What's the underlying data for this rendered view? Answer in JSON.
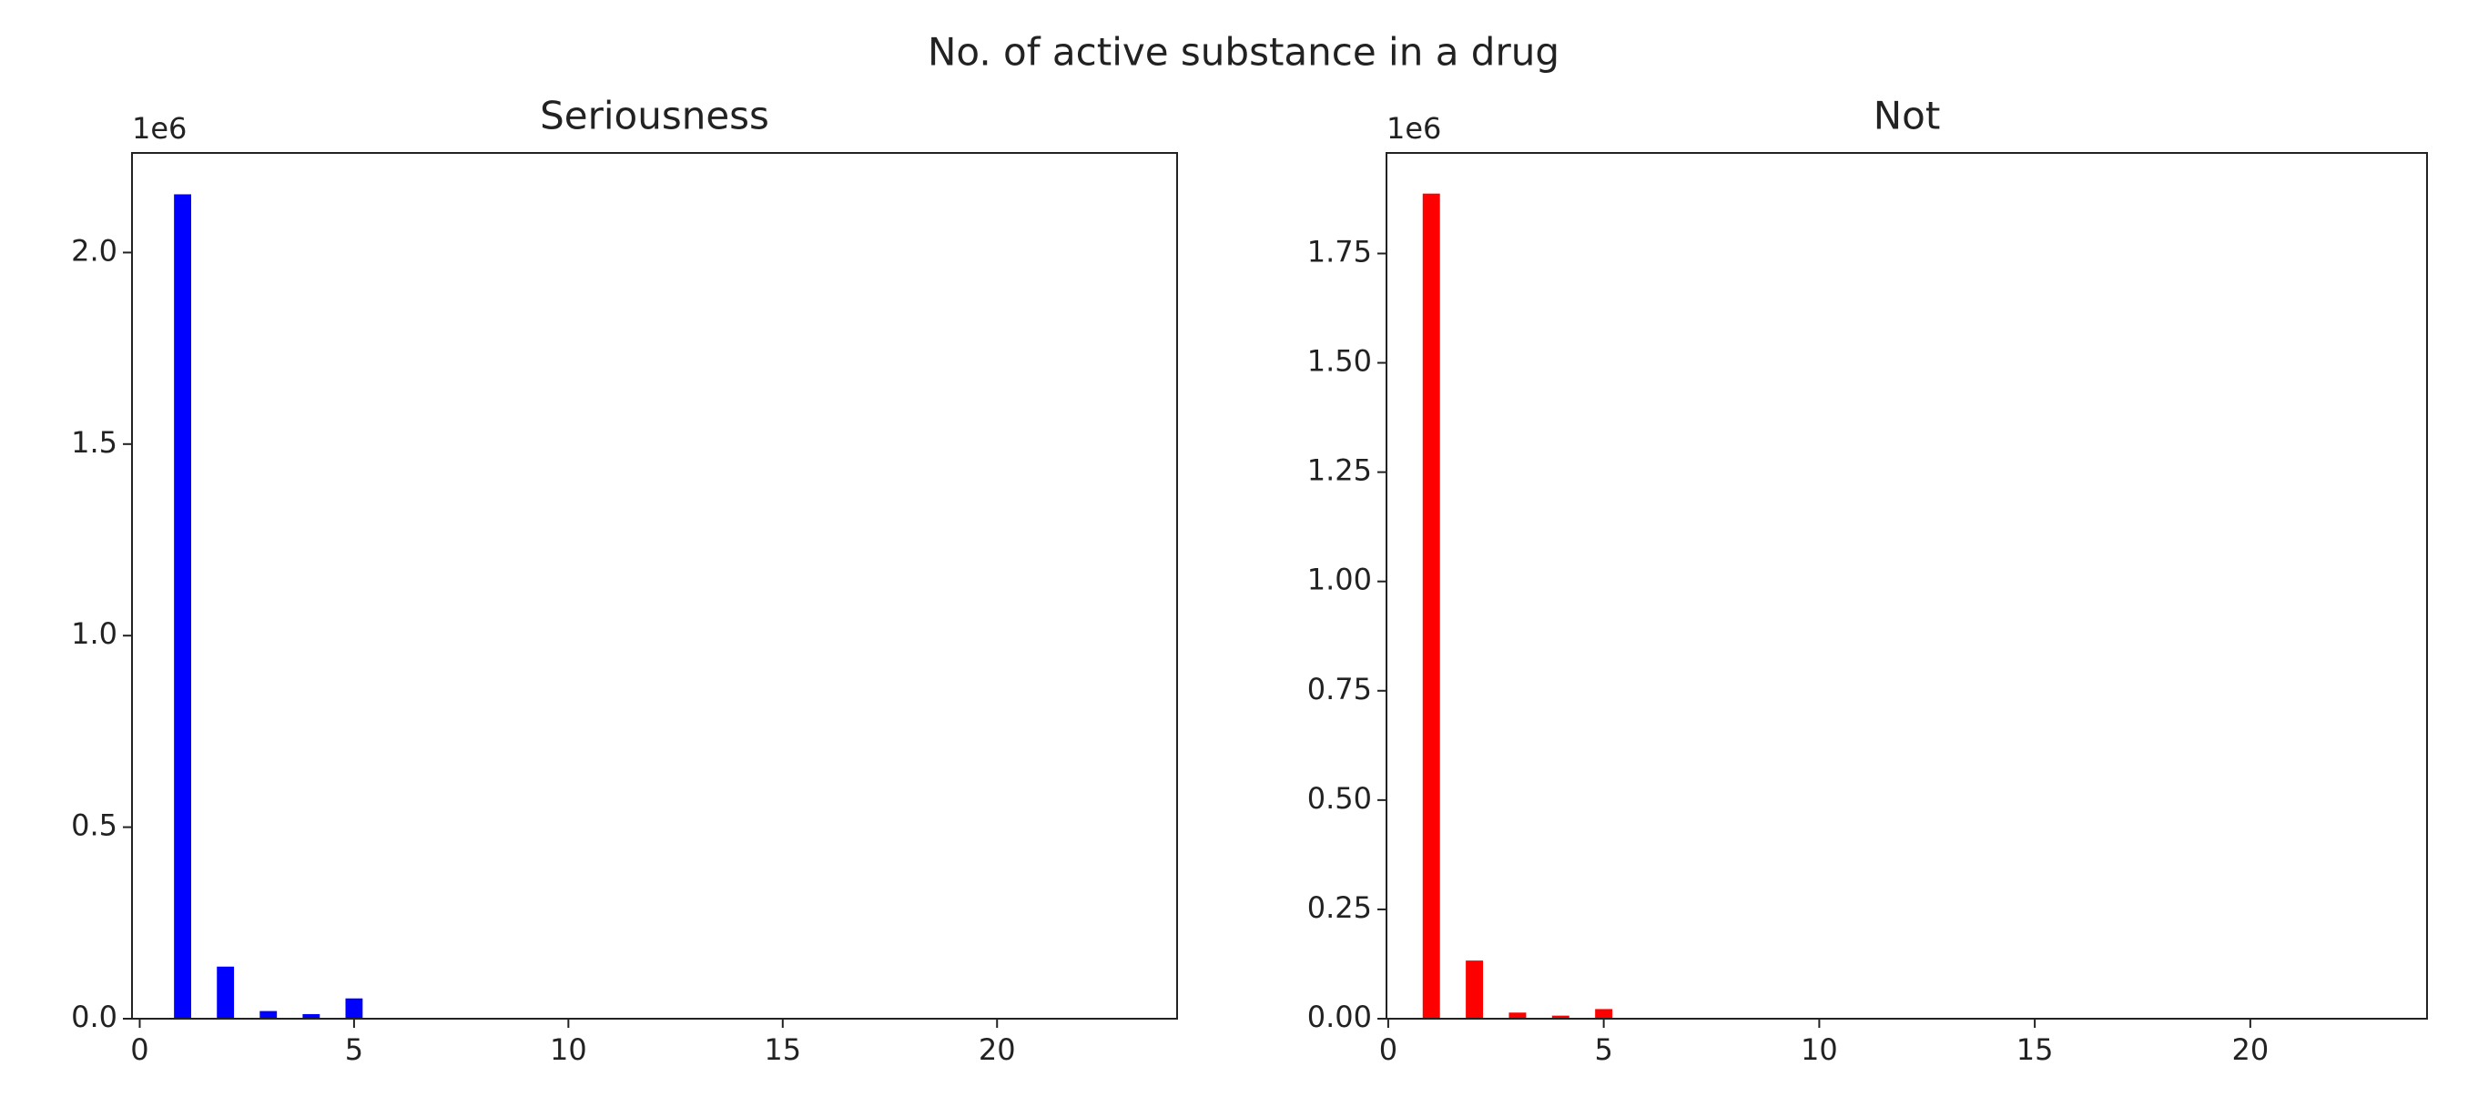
{
  "title": "No. of active substance in a drug",
  "chart_data": [
    {
      "type": "bar",
      "title": "Seriousness",
      "offset_label": "1e6",
      "color": "#0000ff",
      "x": [
        1,
        2,
        3,
        4,
        5
      ],
      "values": [
        2.152,
        0.136,
        0.02,
        0.012,
        0.053
      ],
      "xlim": [
        -0.18,
        24.2
      ],
      "ylim": [
        0,
        2.26
      ],
      "xticks": [
        0,
        5,
        10,
        15,
        20
      ],
      "yticks": [
        {
          "value": 0,
          "label": "0.0"
        },
        0.5,
        {
          "value": 1,
          "label": "1.0"
        },
        1.5,
        {
          "value": 2,
          "label": "2.0"
        }
      ]
    },
    {
      "type": "bar",
      "title": "Not",
      "offset_label": "1e6",
      "color": "#ff0000",
      "x": [
        1,
        2,
        3,
        4,
        5
      ],
      "values": [
        1.887,
        0.133,
        0.014,
        0.007,
        0.022
      ],
      "xlim": [
        -0.04,
        24.1
      ],
      "ylim": [
        0,
        1.98
      ],
      "xticks": [
        0,
        5,
        10,
        15,
        20
      ],
      "yticks": [
        {
          "value": 0,
          "label": "0.00"
        },
        0.25,
        {
          "value": 0.5,
          "label": "0.50"
        },
        0.75,
        {
          "value": 1,
          "label": "1.00"
        },
        1.25,
        {
          "value": 1.5,
          "label": "1.50"
        },
        1.75
      ]
    }
  ]
}
